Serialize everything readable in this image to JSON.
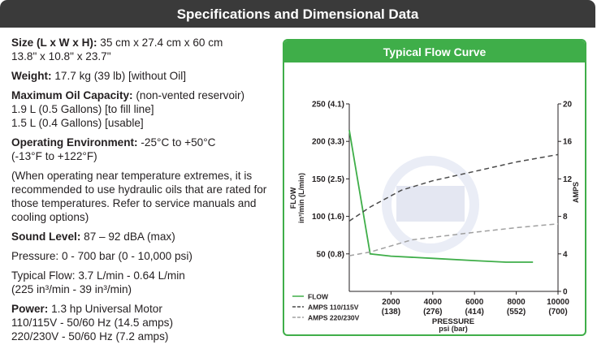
{
  "header": {
    "title": "Specifications and Dimensional Data"
  },
  "specs": {
    "size_label": "Size (L x W x H):",
    "size_value_metric": " 35 cm x 27.4 cm x 60 cm",
    "size_value_imperial": "13.8\" x 10.8\" x 23.7\"",
    "weight_label": "Weight:",
    "weight_value": " 17.7 kg (39 lb) [without Oil]",
    "oil_label": "Maximum Oil Capacity:",
    "oil_note": " (non-vented reservoir)",
    "oil_line1": "1.9 L (0.5 Gallons) [to fill line]",
    "oil_line2": "1.5 L (0.4 Gallons) [usable]",
    "env_label": "Operating Environment:",
    "env_value": "  -25°C to +50°C",
    "env_value2": "(-13°F to +122°F)",
    "env_note": "(When operating near temperature extremes, it is recommended to use hydraulic oils that are rated for those temperatures. Refer to service manuals and cooling options)",
    "sound_label": "Sound Level:",
    "sound_value": " 87 – 92 dBA (max)",
    "pressure_text": "Pressure:  0 - 700 bar (0 - 10,000 psi)",
    "flow_line1": "Typical Flow:  3.7 L/min - 0.64 L/min",
    "flow_line2": "(225 in³/min - 39 in³/min)",
    "power_label": "Power:",
    "power_value": "  1.3 hp Universal Motor",
    "power_line1": "110/115V - 50/60 Hz (14.5 amps)",
    "power_line2": "220/230V - 50/60 Hz (7.2 amps)"
  },
  "colors": {
    "header_bg": "#3a3a3a",
    "accent_green": "#3fae49",
    "amps_110": "#4a4a4a",
    "amps_220": "#a0a0a0"
  },
  "chart_data": {
    "type": "line",
    "title": "Typical Flow Curve",
    "ylabel_left_1": "FLOW",
    "ylabel_left_2": "in³/min (L/min)",
    "ylabel_right": "AMPS",
    "xlabel_1": "PRESSURE",
    "xlabel_2": "psi (bar)",
    "xlim": [
      0,
      10000
    ],
    "ylim_left": [
      0,
      250
    ],
    "ylim_right": [
      0,
      20
    ],
    "x_ticks": [
      {
        "v": 2000,
        "label": "2000",
        "sub": "(138)"
      },
      {
        "v": 4000,
        "label": "4000",
        "sub": "(276)"
      },
      {
        "v": 6000,
        "label": "6000",
        "sub": "(414)"
      },
      {
        "v": 8000,
        "label": "8000",
        "sub": "(552)"
      },
      {
        "v": 10000,
        "label": "10000",
        "sub": "(700)"
      }
    ],
    "y_left_ticks": [
      {
        "v": 50,
        "label": "50 (0.8)"
      },
      {
        "v": 100,
        "label": "100 (1.6)"
      },
      {
        "v": 150,
        "label": "150 (2.5)"
      },
      {
        "v": 200,
        "label": "200 (3.3)"
      },
      {
        "v": 250,
        "label": "250 (4.1)"
      }
    ],
    "y_right_ticks": [
      {
        "v": 0,
        "label": "0"
      },
      {
        "v": 4,
        "label": "4"
      },
      {
        "v": 8,
        "label": "8"
      },
      {
        "v": 12,
        "label": "12"
      },
      {
        "v": 16,
        "label": "16"
      },
      {
        "v": 20,
        "label": "20"
      }
    ],
    "series": [
      {
        "name": "FLOW",
        "axis": "left",
        "color": "#3fae49",
        "style": "solid",
        "points": [
          [
            0,
            215
          ],
          [
            1000,
            50
          ],
          [
            2000,
            47
          ],
          [
            4000,
            44
          ],
          [
            6000,
            41
          ],
          [
            7500,
            39
          ],
          [
            8800,
            39
          ]
        ]
      },
      {
        "name": "AMPS 110/115V",
        "axis": "right",
        "color": "#4a4a4a",
        "style": "dashed",
        "points": [
          [
            0,
            7.5
          ],
          [
            1000,
            9
          ],
          [
            2500,
            10.8
          ],
          [
            4000,
            11.8
          ],
          [
            6000,
            12.8
          ],
          [
            8000,
            13.8
          ],
          [
            10000,
            14.6
          ]
        ]
      },
      {
        "name": "AMPS 220/230V",
        "axis": "right",
        "color": "#a0a0a0",
        "style": "dashed",
        "points": [
          [
            0,
            3.8
          ],
          [
            1000,
            4.2
          ],
          [
            3000,
            5.5
          ],
          [
            6000,
            6.3
          ],
          [
            8000,
            6.8
          ],
          [
            10000,
            7.2
          ]
        ]
      }
    ],
    "legend_position": "bottom-left",
    "grid": false
  }
}
